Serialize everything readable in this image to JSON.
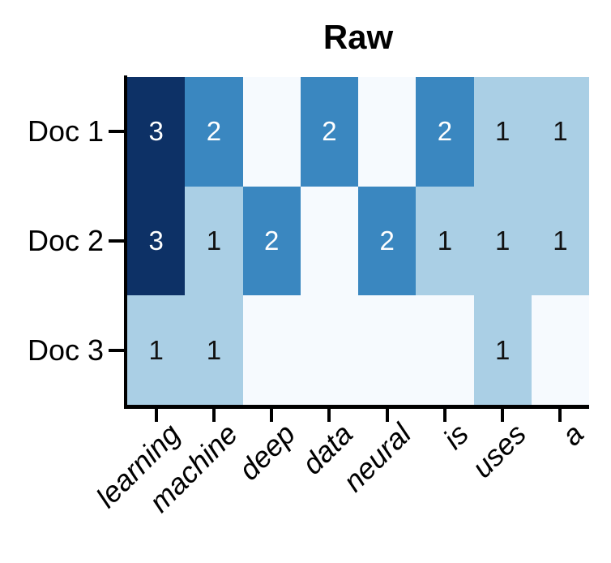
{
  "title": "Raw",
  "colors": {
    "background": "#ffffff",
    "axis": "#000000",
    "value_text_on_dark": "#ffffff",
    "value_text_on_light": "#111111"
  },
  "palette": {
    "0": "#f6fafe",
    "1": "#aacfe5",
    "2": "#3a87c0",
    "3": "#0d3166"
  },
  "chart_data": {
    "type": "heatmap",
    "title": "Raw",
    "rows": [
      "Doc 1",
      "Doc 2",
      "Doc 3"
    ],
    "columns": [
      "learning",
      "machine",
      "deep",
      "data",
      "neural",
      "is",
      "uses",
      "a"
    ],
    "values": [
      [
        3,
        2,
        0,
        2,
        0,
        2,
        1,
        1
      ],
      [
        3,
        1,
        2,
        0,
        2,
        1,
        1,
        1
      ],
      [
        1,
        1,
        0,
        0,
        0,
        0,
        1,
        0
      ]
    ],
    "colormap": "Blues",
    "vmin": 0,
    "vmax": 3,
    "show_values_above": 0,
    "legend": "none",
    "grid": "off"
  }
}
